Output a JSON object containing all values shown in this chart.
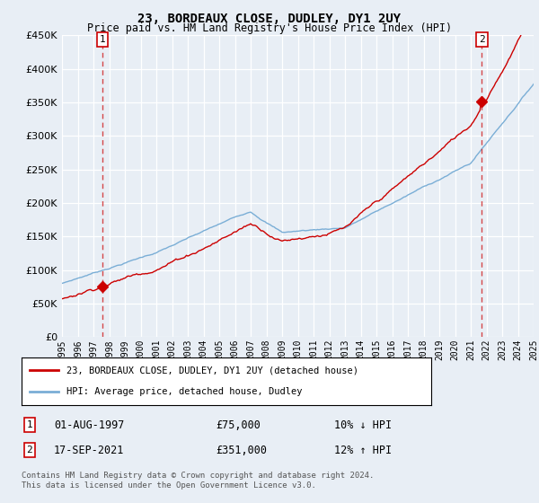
{
  "title": "23, BORDEAUX CLOSE, DUDLEY, DY1 2UY",
  "subtitle": "Price paid vs. HM Land Registry's House Price Index (HPI)",
  "background_color": "#e8eef5",
  "plot_bg_color": "#e8eef5",
  "hpi_color": "#7aaed6",
  "price_color": "#cc0000",
  "marker_color": "#cc0000",
  "dashed_color": "#cc0000",
  "sale1_year": 1997.583,
  "sale1_price": 75000,
  "sale2_year": 2021.708,
  "sale2_price": 351000,
  "xmin": 1995,
  "xmax": 2025,
  "ymin": 0,
  "ymax": 450000,
  "legend_label1": "23, BORDEAUX CLOSE, DUDLEY, DY1 2UY (detached house)",
  "legend_label2": "HPI: Average price, detached house, Dudley",
  "annotation1_label": "1",
  "annotation1_date": "01-AUG-1997",
  "annotation1_price": "£75,000",
  "annotation1_hpi": "10% ↓ HPI",
  "annotation2_label": "2",
  "annotation2_date": "17-SEP-2021",
  "annotation2_price": "£351,000",
  "annotation2_hpi": "12% ↑ HPI",
  "footnote": "Contains HM Land Registry data © Crown copyright and database right 2024.\nThis data is licensed under the Open Government Licence v3.0.",
  "yticks": [
    0,
    50000,
    100000,
    150000,
    200000,
    250000,
    300000,
    350000,
    400000,
    450000
  ]
}
